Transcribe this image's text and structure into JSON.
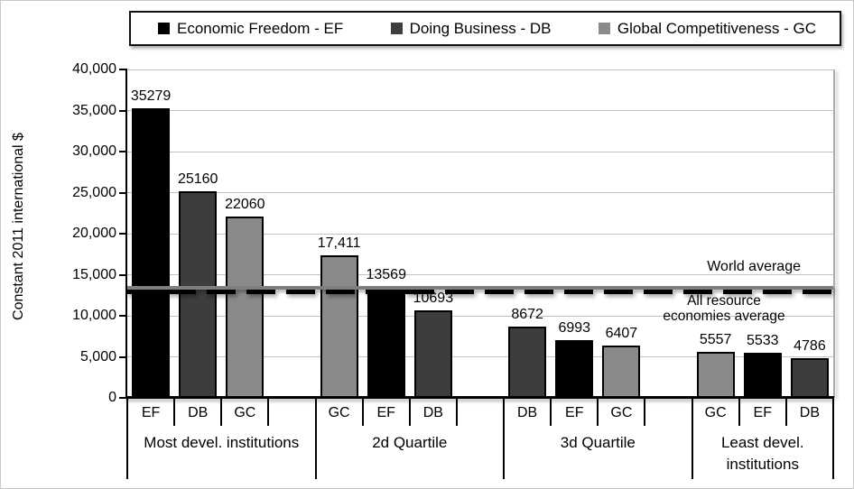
{
  "chart_data": {
    "type": "bar",
    "title": "",
    "ylabel": "Constant 2011 international $",
    "xlabel": "",
    "ylim": [
      0,
      40000
    ],
    "ytick_interval": 5000,
    "grid": "horizontal",
    "yticks": [
      {
        "value": 40000,
        "label": "40,000"
      },
      {
        "value": 35000,
        "label": "35,000"
      },
      {
        "value": 30000,
        "label": "30,000"
      },
      {
        "value": 25000,
        "label": "25,000"
      },
      {
        "value": 20000,
        "label": "20,000"
      },
      {
        "value": 15000,
        "label": "15,000"
      },
      {
        "value": 10000,
        "label": "10,000"
      },
      {
        "value": 5000,
        "label": "5,000"
      },
      {
        "value": 0,
        "label": "0"
      }
    ],
    "legend": {
      "position": "top",
      "items": [
        {
          "series": "EF",
          "label": "Economic Freedom - EF",
          "color": "#000000"
        },
        {
          "series": "DB",
          "label": "Doing Business - DB",
          "color": "#3d3d3d"
        },
        {
          "series": "GC",
          "label": "Global Competitiveness - GC",
          "color": "#8a8a8a"
        }
      ]
    },
    "groups": [
      {
        "label": "Most devel. institutions",
        "bars": [
          {
            "series": "EF",
            "value": 35279,
            "value_label": "35279"
          },
          {
            "series": "DB",
            "value": 25160,
            "value_label": "25160"
          },
          {
            "series": "GC",
            "value": 22060,
            "value_label": "22060"
          }
        ]
      },
      {
        "label": "2d Quartile",
        "bars": [
          {
            "series": "GC",
            "value": 17411,
            "value_label": "17,411"
          },
          {
            "series": "EF",
            "value": 13569,
            "value_label": "13569"
          },
          {
            "series": "DB",
            "value": 10693,
            "value_label": "10693"
          }
        ]
      },
      {
        "label": "3d Quartile",
        "bars": [
          {
            "series": "DB",
            "value": 8672,
            "value_label": "8672"
          },
          {
            "series": "EF",
            "value": 6993,
            "value_label": "6993"
          },
          {
            "series": "GC",
            "value": 6407,
            "value_label": "6407"
          }
        ]
      },
      {
        "label": "Least devel. institutions",
        "bars": [
          {
            "series": "GC",
            "value": 5557,
            "value_label": "5557"
          },
          {
            "series": "EF",
            "value": 5533,
            "value_label": "5533"
          },
          {
            "series": "DB",
            "value": 4786,
            "value_label": "4786"
          }
        ]
      }
    ],
    "reference_lines": [
      {
        "label": "World average",
        "value": 13400,
        "style": "solid",
        "color": "#7f7f7f"
      },
      {
        "label": "All resource economies average",
        "value": 12950,
        "style": "dashed",
        "color": "#000000"
      }
    ]
  }
}
